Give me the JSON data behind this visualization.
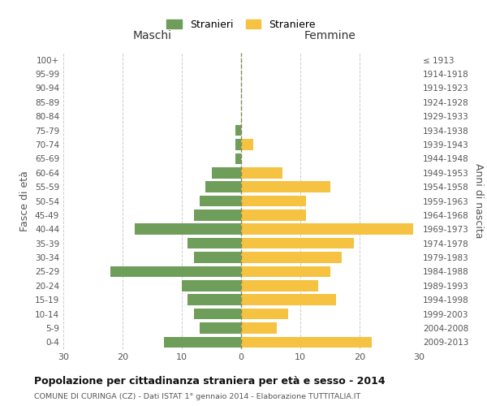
{
  "age_groups": [
    "0-4",
    "5-9",
    "10-14",
    "15-19",
    "20-24",
    "25-29",
    "30-34",
    "35-39",
    "40-44",
    "45-49",
    "50-54",
    "55-59",
    "60-64",
    "65-69",
    "70-74",
    "75-79",
    "80-84",
    "85-89",
    "90-94",
    "95-99",
    "100+"
  ],
  "birth_years": [
    "2009-2013",
    "2004-2008",
    "1999-2003",
    "1994-1998",
    "1989-1993",
    "1984-1988",
    "1979-1983",
    "1974-1978",
    "1969-1973",
    "1964-1968",
    "1959-1963",
    "1954-1958",
    "1949-1953",
    "1944-1948",
    "1939-1943",
    "1934-1938",
    "1929-1933",
    "1924-1928",
    "1919-1923",
    "1914-1918",
    "≤ 1913"
  ],
  "maschi": [
    13,
    7,
    8,
    9,
    10,
    22,
    8,
    9,
    18,
    8,
    7,
    6,
    5,
    1,
    1,
    1,
    0,
    0,
    0,
    0,
    0
  ],
  "femmine": [
    22,
    6,
    8,
    16,
    13,
    15,
    17,
    19,
    29,
    11,
    11,
    15,
    7,
    0,
    2,
    0,
    0,
    0,
    0,
    0,
    0
  ],
  "bar_color_maschi": "#6e9e5a",
  "bar_color_femmine": "#f5c242",
  "title": "Popolazione per cittadinanza straniera per età e sesso - 2014",
  "subtitle": "COMUNE DI CURINGA (CZ) - Dati ISTAT 1° gennaio 2014 - Elaborazione TUTTITALIA.IT",
  "legend_maschi": "Stranieri",
  "legend_femmine": "Straniere",
  "xlabel_left": "Maschi",
  "xlabel_right": "Femmine",
  "ylabel_left": "Fasce di età",
  "ylabel_right": "Anni di nascita",
  "xlim": 30,
  "background_color": "#ffffff",
  "grid_color": "#cccccc"
}
